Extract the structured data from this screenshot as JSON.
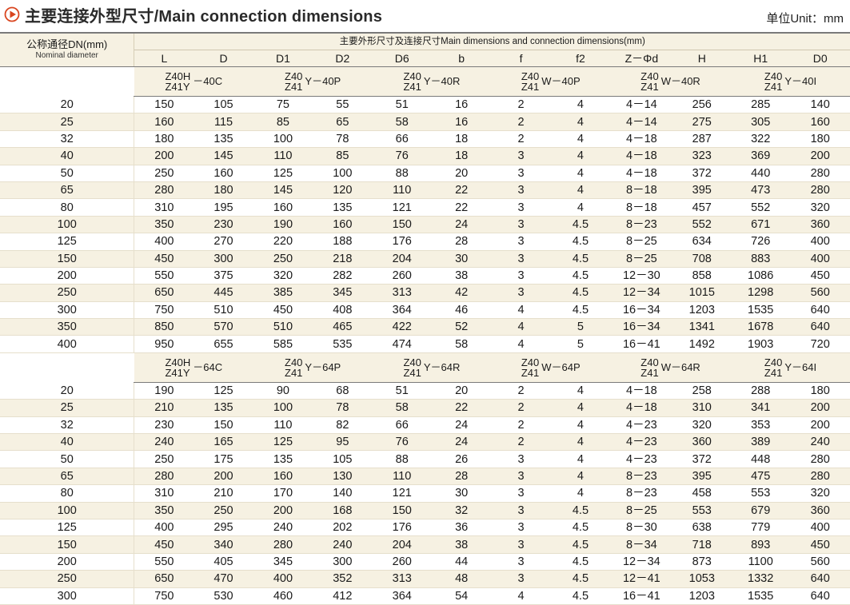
{
  "header": {
    "title": "主要连接外型尺寸/Main connection dimensions",
    "unit": "单位Unit：mm"
  },
  "table": {
    "dn_header_cn": "公称通径DN(mm)",
    "dn_header_en": "Nominal diameter",
    "span_header": "主要外形尺寸及连接尺寸Main dimensions and connection dimensions(mm)",
    "columns": [
      "L",
      "D",
      "D1",
      "D2",
      "D6",
      "b",
      "f",
      "f2",
      "Z－Φd",
      "H",
      "H1",
      "D0"
    ],
    "sections": [
      {
        "models": [
          {
            "top": "Z40H",
            "bottom": "Z41Y",
            "suffix": "－40C"
          },
          {
            "top": "Z40",
            "bottom": "Z41",
            "suffix": "Y－40P"
          },
          {
            "top": "Z40",
            "bottom": "Z41",
            "suffix": "Y－40R"
          },
          {
            "top": "Z40",
            "bottom": "Z41",
            "suffix": "W－40P"
          },
          {
            "top": "Z40",
            "bottom": "Z41",
            "suffix": "W－40R"
          },
          {
            "top": "Z40",
            "bottom": "Z41",
            "suffix": "Y－40I"
          }
        ],
        "rows": [
          [
            "20",
            "150",
            "105",
            "75",
            "55",
            "51",
            "16",
            "2",
            "4",
            "4－14",
            "256",
            "285",
            "140"
          ],
          [
            "25",
            "160",
            "115",
            "85",
            "65",
            "58",
            "16",
            "2",
            "4",
            "4－14",
            "275",
            "305",
            "160"
          ],
          [
            "32",
            "180",
            "135",
            "100",
            "78",
            "66",
            "18",
            "2",
            "4",
            "4－18",
            "287",
            "322",
            "180"
          ],
          [
            "40",
            "200",
            "145",
            "110",
            "85",
            "76",
            "18",
            "3",
            "4",
            "4－18",
            "323",
            "369",
            "200"
          ],
          [
            "50",
            "250",
            "160",
            "125",
            "100",
            "88",
            "20",
            "3",
            "4",
            "4－18",
            "372",
            "440",
            "280"
          ],
          [
            "65",
            "280",
            "180",
            "145",
            "120",
            "110",
            "22",
            "3",
            "4",
            "8－18",
            "395",
            "473",
            "280"
          ],
          [
            "80",
            "310",
            "195",
            "160",
            "135",
            "121",
            "22",
            "3",
            "4",
            "8－18",
            "457",
            "552",
            "320"
          ],
          [
            "100",
            "350",
            "230",
            "190",
            "160",
            "150",
            "24",
            "3",
            "4.5",
            "8－23",
            "552",
            "671",
            "360"
          ],
          [
            "125",
            "400",
            "270",
            "220",
            "188",
            "176",
            "28",
            "3",
            "4.5",
            "8－25",
            "634",
            "726",
            "400"
          ],
          [
            "150",
            "450",
            "300",
            "250",
            "218",
            "204",
            "30",
            "3",
            "4.5",
            "8－25",
            "708",
            "883",
            "400"
          ],
          [
            "200",
            "550",
            "375",
            "320",
            "282",
            "260",
            "38",
            "3",
            "4.5",
            "12－30",
            "858",
            "1086",
            "450"
          ],
          [
            "250",
            "650",
            "445",
            "385",
            "345",
            "313",
            "42",
            "3",
            "4.5",
            "12－34",
            "1015",
            "1298",
            "560"
          ],
          [
            "300",
            "750",
            "510",
            "450",
            "408",
            "364",
            "46",
            "4",
            "4.5",
            "16－34",
            "1203",
            "1535",
            "640"
          ],
          [
            "350",
            "850",
            "570",
            "510",
            "465",
            "422",
            "52",
            "4",
            "5",
            "16－34",
            "1341",
            "1678",
            "640"
          ],
          [
            "400",
            "950",
            "655",
            "585",
            "535",
            "474",
            "58",
            "4",
            "5",
            "16－41",
            "1492",
            "1903",
            "720"
          ]
        ]
      },
      {
        "models": [
          {
            "top": "Z40H",
            "bottom": "Z41Y",
            "suffix": "－64C"
          },
          {
            "top": "Z40",
            "bottom": "Z41",
            "suffix": "Y－64P"
          },
          {
            "top": "Z40",
            "bottom": "Z41",
            "suffix": "Y－64R"
          },
          {
            "top": "Z40",
            "bottom": "Z41",
            "suffix": "W－64P"
          },
          {
            "top": "Z40",
            "bottom": "Z41",
            "suffix": "W－64R"
          },
          {
            "top": "Z40",
            "bottom": "Z41",
            "suffix": "Y－64I"
          }
        ],
        "rows": [
          [
            "20",
            "190",
            "125",
            "90",
            "68",
            "51",
            "20",
            "2",
            "4",
            "4－18",
            "258",
            "288",
            "180"
          ],
          [
            "25",
            "210",
            "135",
            "100",
            "78",
            "58",
            "22",
            "2",
            "4",
            "4－18",
            "310",
            "341",
            "200"
          ],
          [
            "32",
            "230",
            "150",
            "110",
            "82",
            "66",
            "24",
            "2",
            "4",
            "4－23",
            "320",
            "353",
            "200"
          ],
          [
            "40",
            "240",
            "165",
            "125",
            "95",
            "76",
            "24",
            "2",
            "4",
            "4－23",
            "360",
            "389",
            "240"
          ],
          [
            "50",
            "250",
            "175",
            "135",
            "105",
            "88",
            "26",
            "3",
            "4",
            "4－23",
            "372",
            "448",
            "280"
          ],
          [
            "65",
            "280",
            "200",
            "160",
            "130",
            "110",
            "28",
            "3",
            "4",
            "8－23",
            "395",
            "475",
            "280"
          ],
          [
            "80",
            "310",
            "210",
            "170",
            "140",
            "121",
            "30",
            "3",
            "4",
            "8－23",
            "458",
            "553",
            "320"
          ],
          [
            "100",
            "350",
            "250",
            "200",
            "168",
            "150",
            "32",
            "3",
            "4.5",
            "8－25",
            "553",
            "679",
            "360"
          ],
          [
            "125",
            "400",
            "295",
            "240",
            "202",
            "176",
            "36",
            "3",
            "4.5",
            "8－30",
            "638",
            "779",
            "400"
          ],
          [
            "150",
            "450",
            "340",
            "280",
            "240",
            "204",
            "38",
            "3",
            "4.5",
            "8－34",
            "718",
            "893",
            "450"
          ],
          [
            "200",
            "550",
            "405",
            "345",
            "300",
            "260",
            "44",
            "3",
            "4.5",
            "12－34",
            "873",
            "1100",
            "560"
          ],
          [
            "250",
            "650",
            "470",
            "400",
            "352",
            "313",
            "48",
            "3",
            "4.5",
            "12－41",
            "1053",
            "1332",
            "640"
          ],
          [
            "300",
            "750",
            "530",
            "460",
            "412",
            "364",
            "54",
            "4",
            "4.5",
            "16－41",
            "1203",
            "1535",
            "640"
          ]
        ]
      }
    ]
  },
  "colors": {
    "header_band": "#f6f1e2",
    "accent": "#d9451f",
    "rule": "#7a7a7a"
  },
  "icons": {
    "title_marker": "play-circle-icon"
  }
}
